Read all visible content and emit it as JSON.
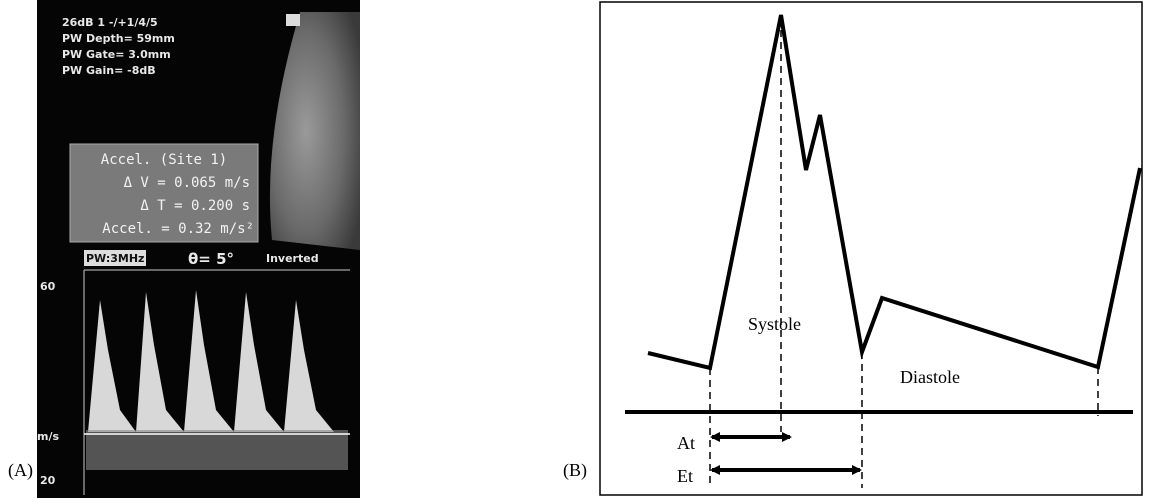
{
  "panel_a": {
    "label": "(A)",
    "header": [
      "26dB 1 -/+1/4/5",
      "PW Depth= 59mm",
      "PW Gate= 3.0mm",
      "PW Gain= -8dB"
    ],
    "accel_box": [
      "Accel. (Site 1)",
      "Δ V = 0.065 m/s",
      "Δ T = 0.200 s",
      "Accel. = 0.32 m/s²"
    ],
    "doppler": {
      "probe": "PW:3MHz",
      "angle": "θ= 5°",
      "mode": "Inverted",
      "scale_top": "60",
      "unit": "m/s",
      "scale_bottom": "20"
    }
  },
  "panel_b": {
    "label": "(B)",
    "systole": "Systole",
    "diastole": "Diastole",
    "at": "At",
    "et": "Et"
  }
}
